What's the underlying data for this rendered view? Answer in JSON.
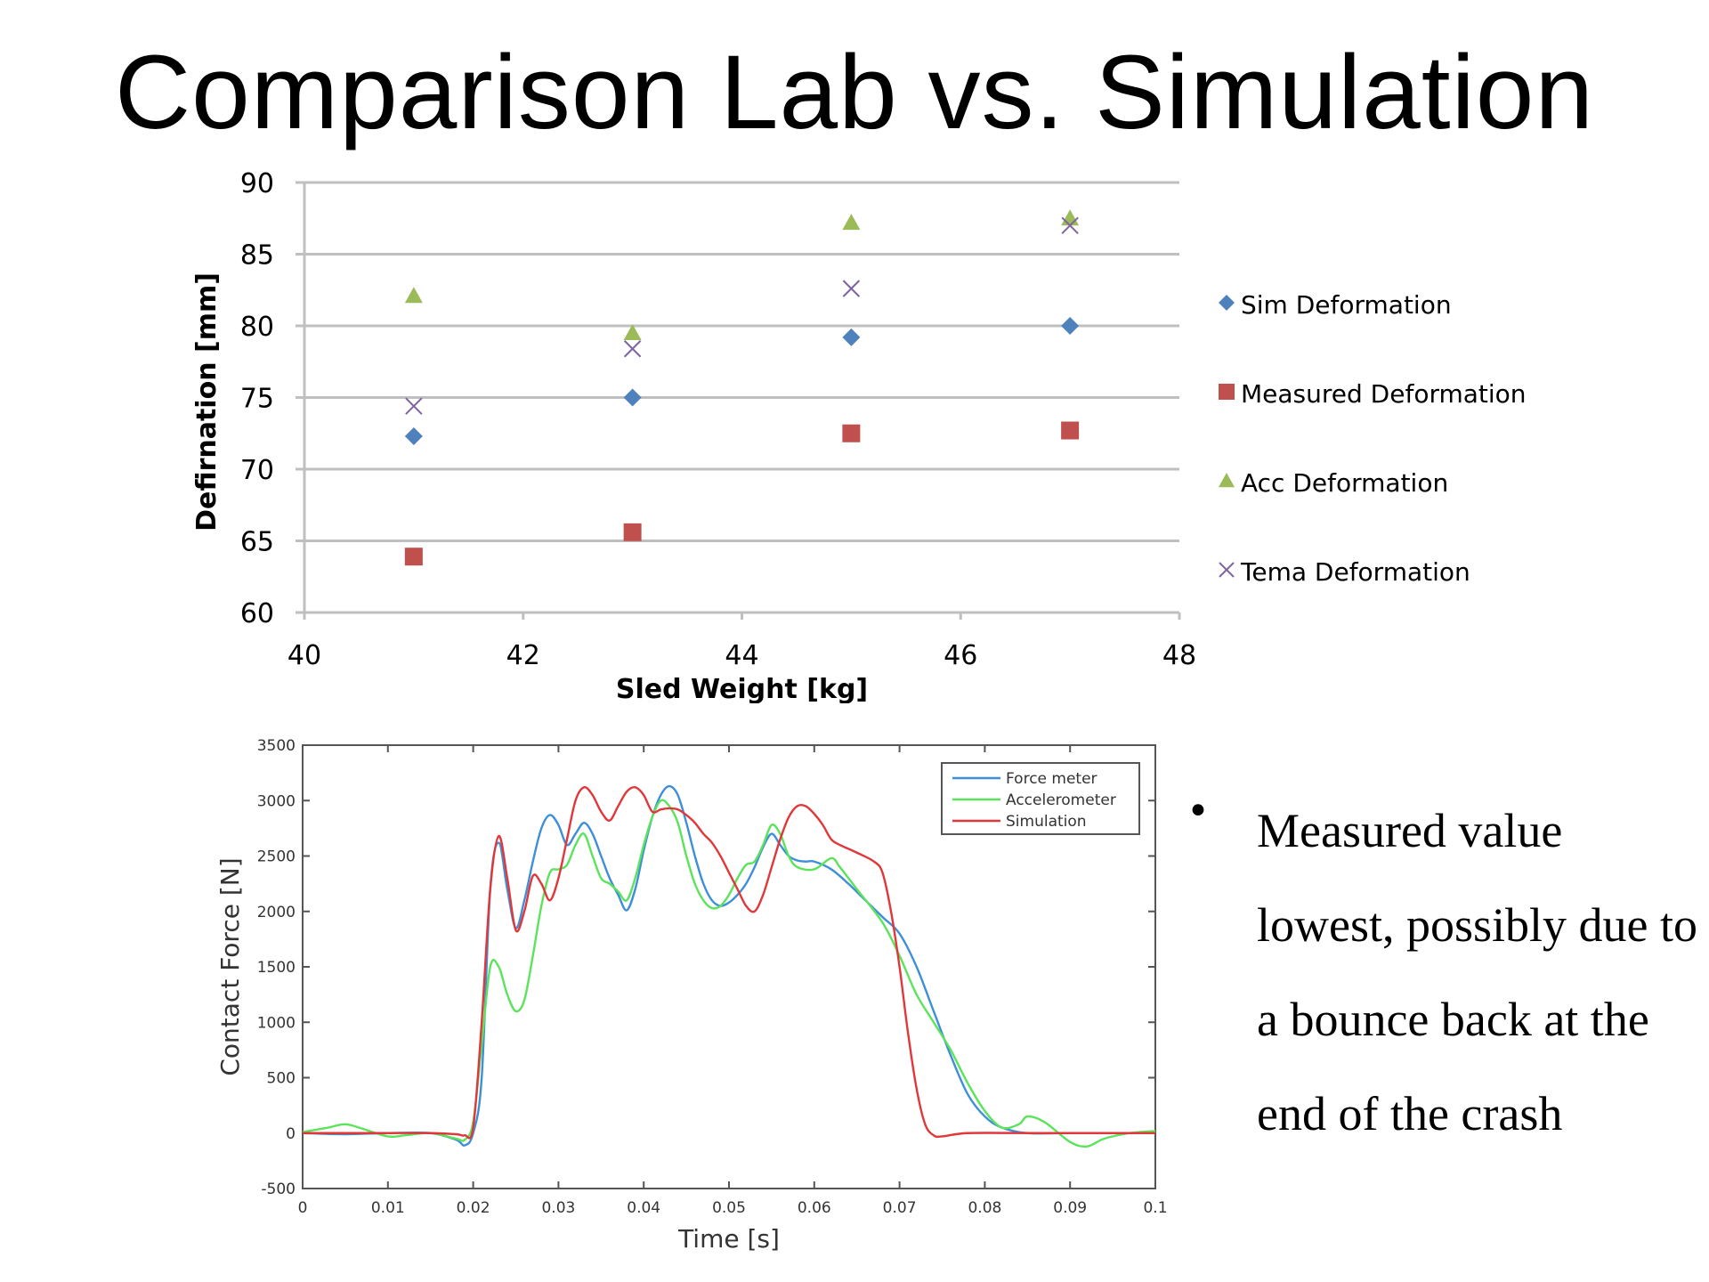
{
  "slide": {
    "title": "Comparison Lab vs. Simulation",
    "bullet_marker": "•",
    "bullet_text": "Measured value lowest, possibly due to a bounce back at the end of the crash"
  },
  "chart_data": [
    {
      "type": "scatter",
      "title": "",
      "xlabel": "Sled Weight [kg]",
      "ylabel": "Defirnation [mm]",
      "xlim": [
        40,
        48
      ],
      "ylim": [
        60,
        90
      ],
      "xticks": [
        40,
        42,
        44,
        46,
        48
      ],
      "yticks": [
        60,
        65,
        70,
        75,
        80,
        85,
        90
      ],
      "grid": "horizontal",
      "legend_position": "right",
      "series": [
        {
          "name": "Sim Deformation",
          "marker": "diamond",
          "color": "#4f81bd",
          "points": [
            [
              41,
              72.3
            ],
            [
              43,
              75.0
            ],
            [
              45,
              79.2
            ],
            [
              47,
              80.0
            ]
          ]
        },
        {
          "name": "Measured Deformation",
          "marker": "square",
          "color": "#c0504d",
          "points": [
            [
              41,
              63.9
            ],
            [
              43,
              65.6
            ],
            [
              45,
              72.5
            ],
            [
              47,
              72.7
            ]
          ]
        },
        {
          "name": "Acc Deformation",
          "marker": "triangle",
          "color": "#9bbb59",
          "points": [
            [
              41,
              82.1
            ],
            [
              43,
              79.5
            ],
            [
              45,
              87.2
            ],
            [
              47,
              87.5
            ]
          ]
        },
        {
          "name": "Tema Deformation",
          "marker": "x",
          "color": "#8064a2",
          "points": [
            [
              41,
              74.4
            ],
            [
              43,
              78.4
            ],
            [
              45,
              82.6
            ],
            [
              47,
              87.0
            ]
          ]
        }
      ]
    },
    {
      "type": "line",
      "title": "",
      "xlabel": "Time [s]",
      "ylabel": "Contact Force [N]",
      "xlim": [
        0,
        0.1
      ],
      "ylim": [
        -500,
        3500
      ],
      "xticks": [
        "0",
        "0.01",
        "0.02",
        "0.03",
        "0.04",
        "0.05",
        "0.06",
        "0.07",
        "0.08",
        "0.09",
        "0.1"
      ],
      "yticks": [
        "-500",
        "0",
        "500",
        "1000",
        "1500",
        "2000",
        "2500",
        "3000",
        "3500"
      ],
      "grid": "off",
      "legend_position": "top-right",
      "series": [
        {
          "name": "Force meter",
          "color": "#3f8fd8",
          "points": [
            [
              0,
              0
            ],
            [
              0.005,
              -10
            ],
            [
              0.01,
              0
            ],
            [
              0.015,
              0
            ],
            [
              0.018,
              -60
            ],
            [
              0.019,
              -110
            ],
            [
              0.02,
              0
            ],
            [
              0.021,
              500
            ],
            [
              0.022,
              2200
            ],
            [
              0.023,
              2620
            ],
            [
              0.024,
              2200
            ],
            [
              0.025,
              1850
            ],
            [
              0.026,
              2100
            ],
            [
              0.027,
              2450
            ],
            [
              0.028,
              2750
            ],
            [
              0.029,
              2870
            ],
            [
              0.03,
              2780
            ],
            [
              0.031,
              2600
            ],
            [
              0.032,
              2700
            ],
            [
              0.033,
              2800
            ],
            [
              0.034,
              2700
            ],
            [
              0.035,
              2500
            ],
            [
              0.036,
              2300
            ],
            [
              0.037,
              2150
            ],
            [
              0.038,
              2010
            ],
            [
              0.039,
              2200
            ],
            [
              0.04,
              2550
            ],
            [
              0.041,
              2850
            ],
            [
              0.042,
              3050
            ],
            [
              0.043,
              3130
            ],
            [
              0.044,
              3050
            ],
            [
              0.045,
              2800
            ],
            [
              0.046,
              2500
            ],
            [
              0.047,
              2250
            ],
            [
              0.048,
              2100
            ],
            [
              0.049,
              2050
            ],
            [
              0.05,
              2080
            ],
            [
              0.051,
              2150
            ],
            [
              0.052,
              2250
            ],
            [
              0.053,
              2400
            ],
            [
              0.054,
              2580
            ],
            [
              0.055,
              2700
            ],
            [
              0.056,
              2600
            ],
            [
              0.057,
              2500
            ],
            [
              0.058,
              2460
            ],
            [
              0.059,
              2450
            ],
            [
              0.06,
              2450
            ],
            [
              0.062,
              2380
            ],
            [
              0.064,
              2250
            ],
            [
              0.066,
              2100
            ],
            [
              0.068,
              1950
            ],
            [
              0.07,
              1800
            ],
            [
              0.072,
              1500
            ],
            [
              0.074,
              1100
            ],
            [
              0.076,
              700
            ],
            [
              0.078,
              350
            ],
            [
              0.08,
              150
            ],
            [
              0.082,
              50
            ],
            [
              0.085,
              0
            ],
            [
              0.09,
              0
            ],
            [
              0.095,
              0
            ],
            [
              0.1,
              0
            ]
          ]
        },
        {
          "name": "Accelerometer",
          "color": "#5ce35c",
          "points": [
            [
              0,
              10
            ],
            [
              0.003,
              50
            ],
            [
              0.005,
              80
            ],
            [
              0.007,
              40
            ],
            [
              0.01,
              -30
            ],
            [
              0.012,
              -20
            ],
            [
              0.015,
              0
            ],
            [
              0.018,
              -50
            ],
            [
              0.019,
              -60
            ],
            [
              0.02,
              100
            ],
            [
              0.021,
              800
            ],
            [
              0.022,
              1500
            ],
            [
              0.023,
              1500
            ],
            [
              0.024,
              1250
            ],
            [
              0.025,
              1100
            ],
            [
              0.026,
              1200
            ],
            [
              0.027,
              1600
            ],
            [
              0.028,
              2050
            ],
            [
              0.029,
              2350
            ],
            [
              0.03,
              2380
            ],
            [
              0.031,
              2420
            ],
            [
              0.032,
              2600
            ],
            [
              0.033,
              2700
            ],
            [
              0.034,
              2500
            ],
            [
              0.035,
              2300
            ],
            [
              0.036,
              2250
            ],
            [
              0.037,
              2180
            ],
            [
              0.038,
              2100
            ],
            [
              0.039,
              2300
            ],
            [
              0.04,
              2600
            ],
            [
              0.041,
              2850
            ],
            [
              0.042,
              3000
            ],
            [
              0.043,
              2950
            ],
            [
              0.044,
              2800
            ],
            [
              0.045,
              2500
            ],
            [
              0.046,
              2250
            ],
            [
              0.047,
              2100
            ],
            [
              0.048,
              2030
            ],
            [
              0.049,
              2050
            ],
            [
              0.05,
              2150
            ],
            [
              0.051,
              2300
            ],
            [
              0.052,
              2420
            ],
            [
              0.053,
              2450
            ],
            [
              0.054,
              2600
            ],
            [
              0.055,
              2780
            ],
            [
              0.056,
              2700
            ],
            [
              0.057,
              2500
            ],
            [
              0.058,
              2400
            ],
            [
              0.06,
              2380
            ],
            [
              0.062,
              2480
            ],
            [
              0.063,
              2400
            ],
            [
              0.065,
              2200
            ],
            [
              0.068,
              1900
            ],
            [
              0.07,
              1600
            ],
            [
              0.072,
              1250
            ],
            [
              0.074,
              1000
            ],
            [
              0.076,
              750
            ],
            [
              0.078,
              450
            ],
            [
              0.08,
              200
            ],
            [
              0.082,
              50
            ],
            [
              0.084,
              80
            ],
            [
              0.085,
              150
            ],
            [
              0.087,
              100
            ],
            [
              0.09,
              -80
            ],
            [
              0.092,
              -120
            ],
            [
              0.094,
              -50
            ],
            [
              0.097,
              0
            ],
            [
              0.1,
              20
            ]
          ]
        },
        {
          "name": "Simulation",
          "color": "#e0383a",
          "points": [
            [
              0,
              0
            ],
            [
              0.005,
              0
            ],
            [
              0.01,
              0
            ],
            [
              0.015,
              0
            ],
            [
              0.018,
              -10
            ],
            [
              0.019,
              -20
            ],
            [
              0.02,
              50
            ],
            [
              0.021,
              1000
            ],
            [
              0.022,
              2200
            ],
            [
              0.023,
              2680
            ],
            [
              0.024,
              2300
            ],
            [
              0.025,
              1830
            ],
            [
              0.026,
              2000
            ],
            [
              0.027,
              2320
            ],
            [
              0.028,
              2250
            ],
            [
              0.029,
              2100
            ],
            [
              0.03,
              2300
            ],
            [
              0.031,
              2650
            ],
            [
              0.032,
              3000
            ],
            [
              0.033,
              3120
            ],
            [
              0.034,
              3050
            ],
            [
              0.035,
              2900
            ],
            [
              0.036,
              2820
            ],
            [
              0.037,
              2950
            ],
            [
              0.038,
              3080
            ],
            [
              0.039,
              3120
            ],
            [
              0.04,
              3050
            ],
            [
              0.041,
              2900
            ],
            [
              0.042,
              2920
            ],
            [
              0.043,
              2930
            ],
            [
              0.044,
              2920
            ],
            [
              0.045,
              2870
            ],
            [
              0.046,
              2800
            ],
            [
              0.047,
              2700
            ],
            [
              0.048,
              2620
            ],
            [
              0.049,
              2500
            ],
            [
              0.05,
              2350
            ],
            [
              0.051,
              2200
            ],
            [
              0.052,
              2050
            ],
            [
              0.053,
              2000
            ],
            [
              0.054,
              2150
            ],
            [
              0.055,
              2400
            ],
            [
              0.056,
              2650
            ],
            [
              0.057,
              2850
            ],
            [
              0.058,
              2950
            ],
            [
              0.059,
              2950
            ],
            [
              0.06,
              2880
            ],
            [
              0.061,
              2780
            ],
            [
              0.062,
              2650
            ],
            [
              0.063,
              2600
            ],
            [
              0.065,
              2530
            ],
            [
              0.067,
              2450
            ],
            [
              0.068,
              2350
            ],
            [
              0.069,
              2000
            ],
            [
              0.07,
              1500
            ],
            [
              0.071,
              900
            ],
            [
              0.072,
              400
            ],
            [
              0.073,
              80
            ],
            [
              0.074,
              -20
            ],
            [
              0.075,
              -30
            ],
            [
              0.078,
              0
            ],
            [
              0.085,
              0
            ],
            [
              0.09,
              0
            ],
            [
              0.095,
              0
            ],
            [
              0.1,
              0
            ]
          ]
        }
      ]
    }
  ]
}
